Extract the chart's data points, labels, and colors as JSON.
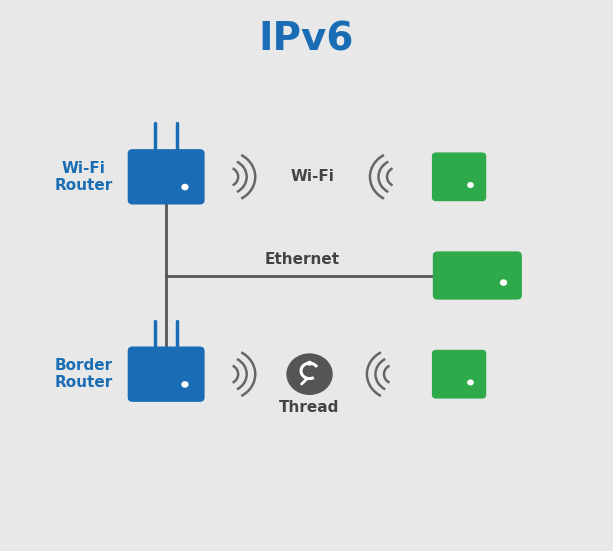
{
  "title": "IPv6",
  "title_color": "#1a6db5",
  "title_fontsize": 28,
  "bg_color": "#e8e8e8",
  "router_color": "#1a6db5",
  "device_color": "#2eaa4a",
  "line_color": "#555555",
  "wifi_label": "Wi-Fi",
  "ethernet_label": "Ethernet",
  "thread_label": "Thread",
  "wifi_router_label": "Wi-Fi\nRouter",
  "border_router_label": "Border\nRouter",
  "label_color": "#1a6db5",
  "signal_color": "#666666",
  "thread_icon_color": "#555555"
}
